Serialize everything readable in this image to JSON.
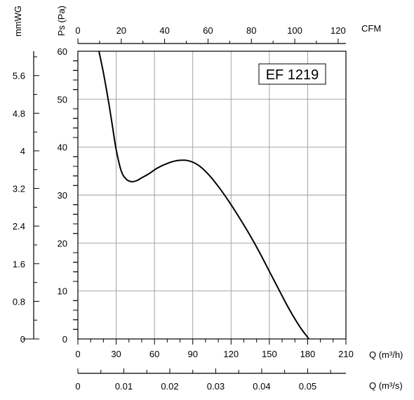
{
  "chart_data": {
    "type": "line",
    "title": "EF 1219",
    "ylabel": "Ps (Pa)",
    "ylabel_secondary": "mmWG",
    "xlabel": "Q (m³/h)",
    "xlabel_top": "CFM",
    "xlabel_bottom": "Q (m³/s)",
    "xlim": [
      0,
      210
    ],
    "ylim": [
      0,
      60
    ],
    "grid": true,
    "x_ticks": [
      "0",
      "30",
      "60",
      "90",
      "120",
      "150",
      "180",
      "210"
    ],
    "y_ticks": [
      "0",
      "10",
      "20",
      "30",
      "40",
      "50",
      "60"
    ],
    "cfm_ticks": [
      "0",
      "20",
      "40",
      "60",
      "80",
      "100",
      "120"
    ],
    "mmwg_ticks": [
      "0",
      "0.8",
      "1.6",
      "2.4",
      "3.2",
      "4",
      "4.8",
      "5.6"
    ],
    "m3s_ticks": [
      "0",
      "0.01",
      "0.02",
      "0.03",
      "0.04",
      "0.05"
    ],
    "series": [
      {
        "x": [
          16.5,
          20,
          24,
          27,
          30,
          34,
          38,
          42,
          46,
          50,
          56,
          62,
          70,
          78,
          86,
          94,
          102,
          110,
          118,
          126,
          134,
          142,
          150,
          158,
          166,
          174,
          181
        ],
        "y": [
          60,
          55.5,
          49.5,
          44.5,
          39.5,
          35,
          33.3,
          32.8,
          33.0,
          33.6,
          34.5,
          35.6,
          36.6,
          37.2,
          37.2,
          36.3,
          34.4,
          31.8,
          28.8,
          25.5,
          22.0,
          18.2,
          14.1,
          10.0,
          6.0,
          2.5,
          0
        ]
      }
    ]
  }
}
